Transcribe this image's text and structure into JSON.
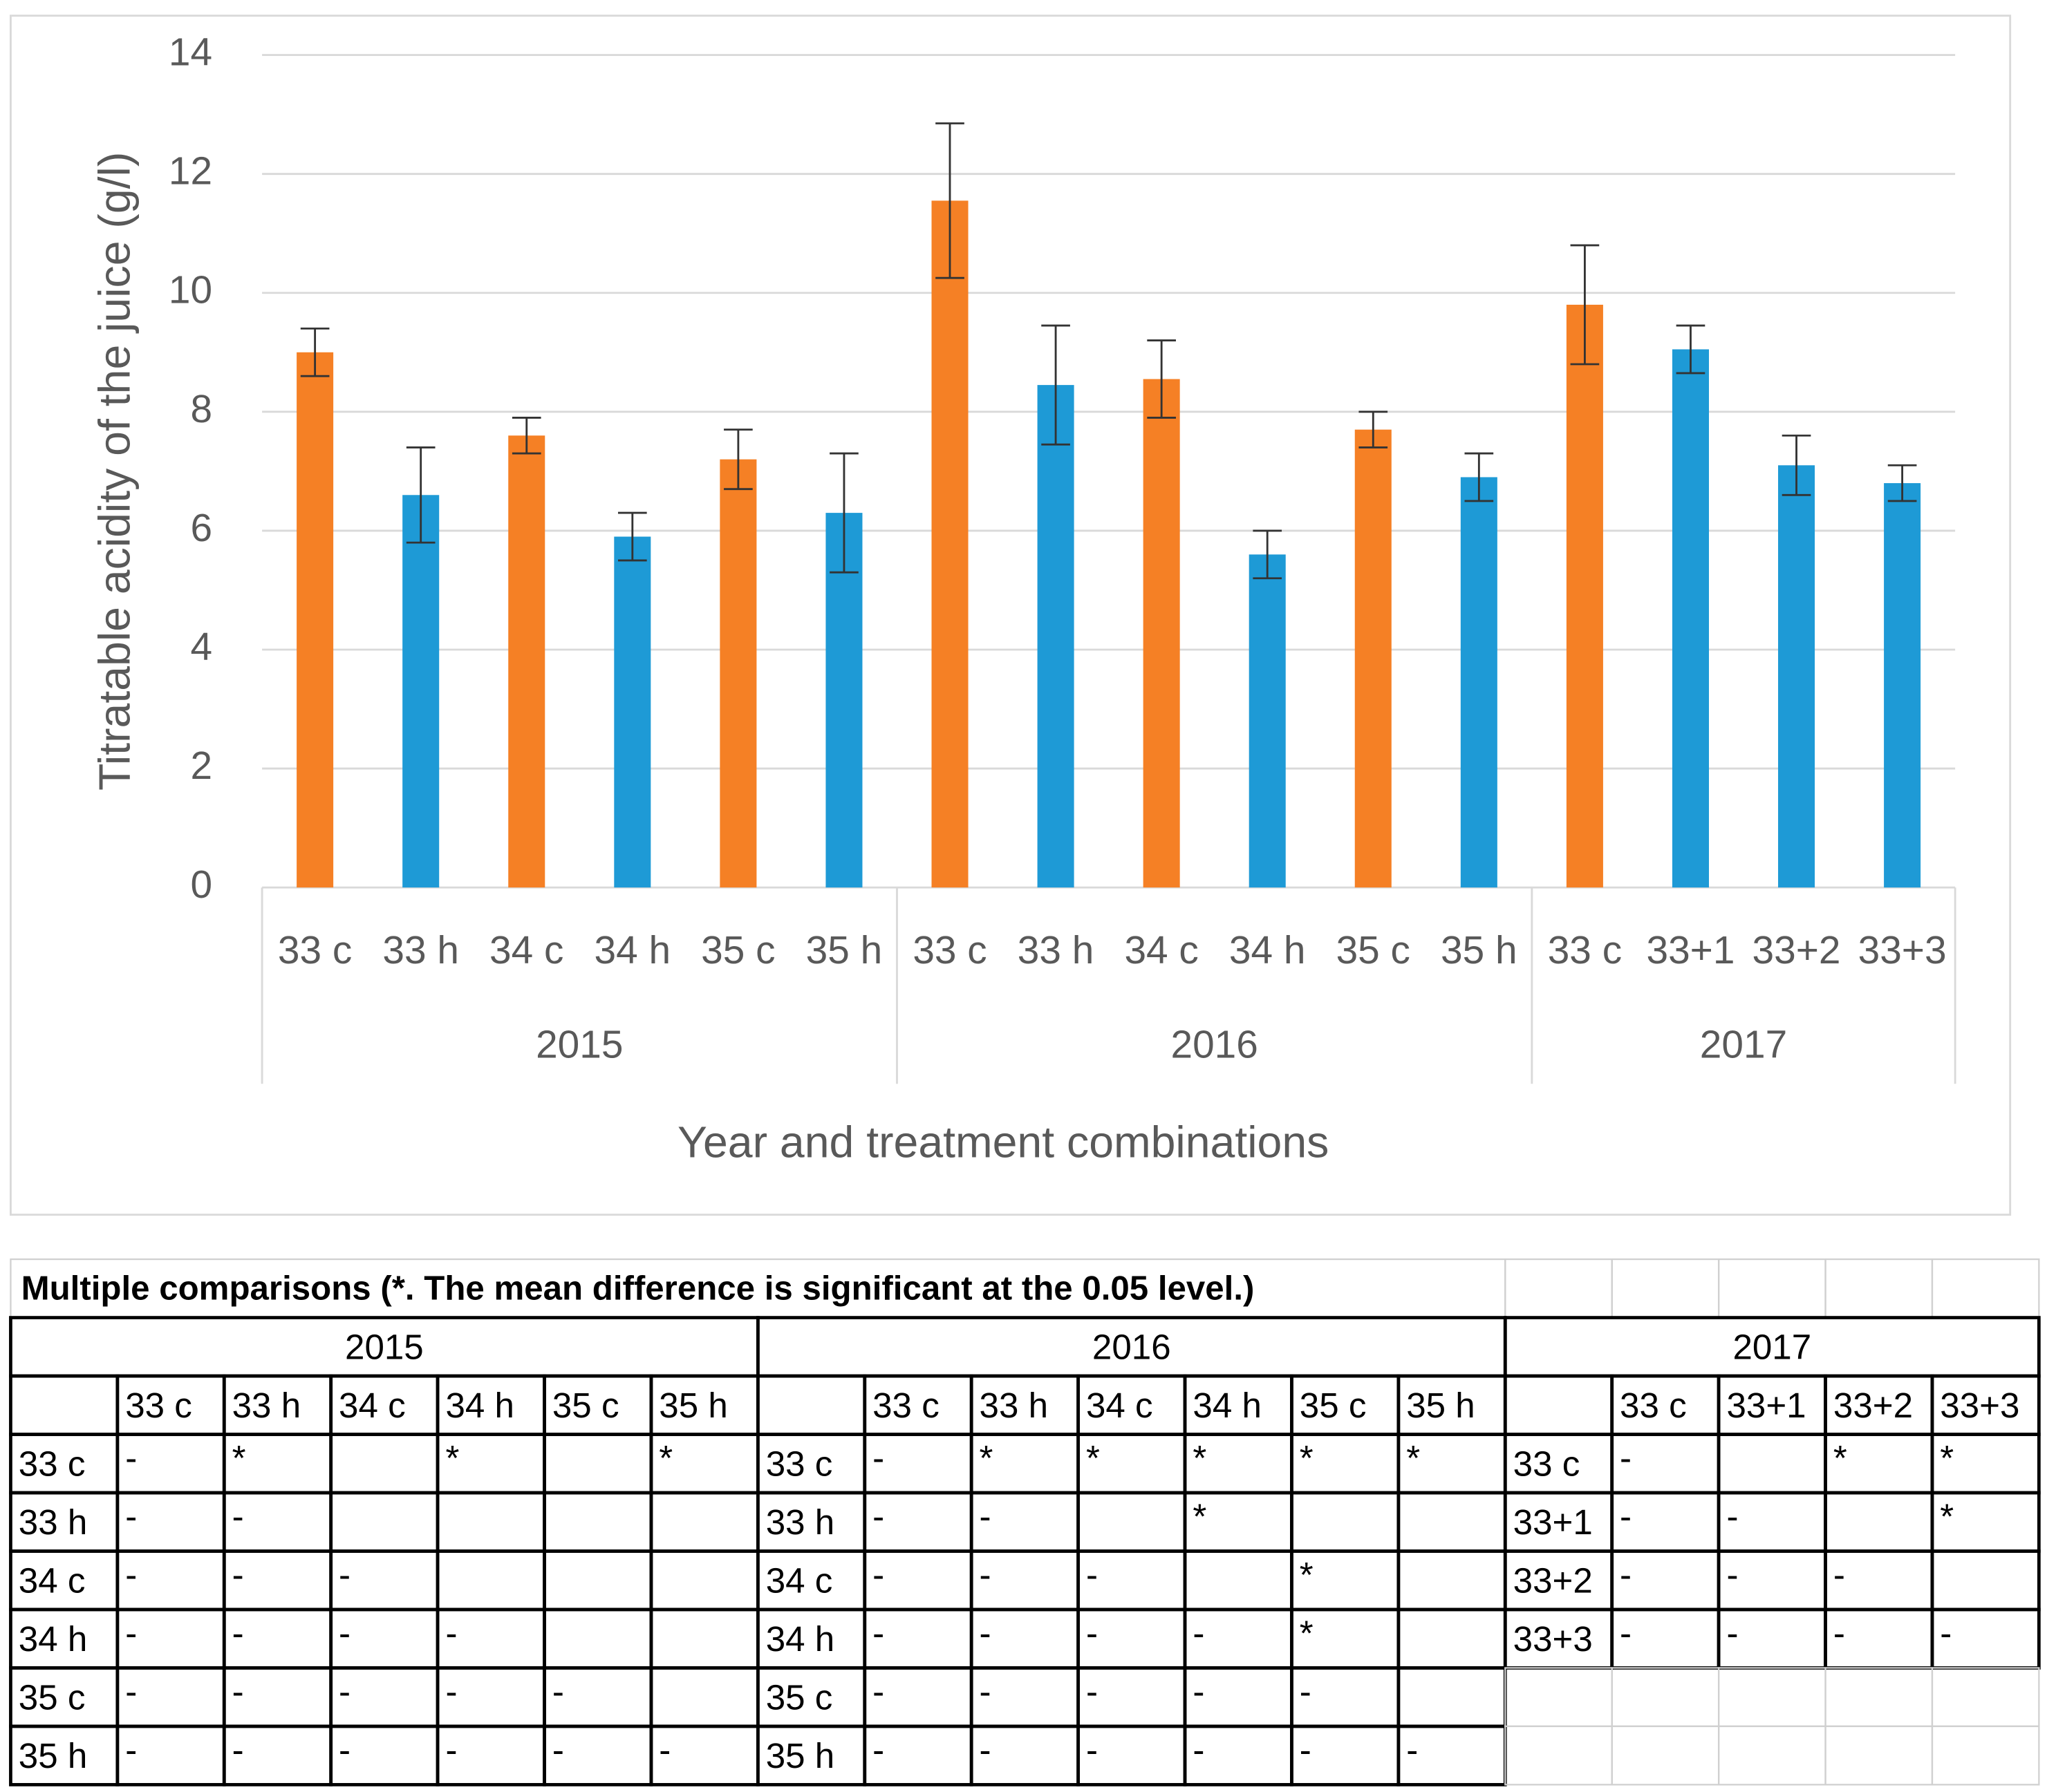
{
  "chart_data": {
    "type": "bar",
    "y_label": "Titratable acidity of the juice (g/l)",
    "x_label": "Year and treatment combinations",
    "ylim": [
      0,
      14
    ],
    "yticks": [
      0,
      2,
      4,
      6,
      8,
      10,
      12,
      14
    ],
    "grid": true,
    "groups": [
      {
        "label": "2015",
        "categories": [
          "33 c",
          "33 h",
          "34 c",
          "34 h",
          "35 c",
          "35 h"
        ],
        "values": [
          9.0,
          6.6,
          7.6,
          5.9,
          7.2,
          6.3
        ],
        "errors": [
          0.4,
          0.8,
          0.3,
          0.4,
          0.5,
          1.0
        ],
        "colors": [
          "#f58025",
          "#1e9ad6",
          "#f58025",
          "#1e9ad6",
          "#f58025",
          "#1e9ad6"
        ]
      },
      {
        "label": "2016",
        "categories": [
          "33 c",
          "33 h",
          "34 c",
          "34 h",
          "35 c",
          "35 h"
        ],
        "values": [
          11.55,
          8.45,
          8.55,
          5.6,
          7.7,
          6.9
        ],
        "errors": [
          1.3,
          1.0,
          0.65,
          0.4,
          0.3,
          0.4
        ],
        "colors": [
          "#f58025",
          "#1e9ad6",
          "#f58025",
          "#1e9ad6",
          "#f58025",
          "#1e9ad6"
        ]
      },
      {
        "label": "2017",
        "categories": [
          "33 c",
          "33+1",
          "33+2",
          "33+3"
        ],
        "values": [
          9.8,
          9.05,
          7.1,
          6.8
        ],
        "errors": [
          1.0,
          0.4,
          0.5,
          0.3
        ],
        "colors": [
          "#f58025",
          "#1e9ad6",
          "#1e9ad6",
          "#1e9ad6"
        ]
      }
    ]
  },
  "table": {
    "title": "Multiple comparisons (*. The mean difference is significant at the 0.05 level.)",
    "blocks": [
      {
        "year": "2015",
        "columns": [
          "33 c",
          "33 h",
          "34 c",
          "34 h",
          "35 c",
          "35 h"
        ],
        "rows": [
          {
            "label": "33 c",
            "cells": [
              "-",
              "*",
              null,
              "*",
              null,
              "*"
            ]
          },
          {
            "label": "33 h",
            "cells": [
              "-",
              "-",
              null,
              null,
              null,
              null
            ]
          },
          {
            "label": "34 c",
            "cells": [
              "-",
              "-",
              "-",
              null,
              null,
              null
            ]
          },
          {
            "label": "34 h",
            "cells": [
              "-",
              "-",
              "-",
              "-",
              null,
              null
            ]
          },
          {
            "label": "35 c",
            "cells": [
              "-",
              "-",
              "-",
              "-",
              "-",
              null
            ]
          },
          {
            "label": "35 h",
            "cells": [
              "-",
              "-",
              "-",
              "-",
              "-",
              "-"
            ]
          }
        ]
      },
      {
        "year": "2016",
        "columns": [
          "33 c",
          "33 h",
          "34 c",
          "34 h",
          "35 c",
          "35 h"
        ],
        "rows": [
          {
            "label": "33 c",
            "cells": [
              "-",
              "*",
              "*",
              "*",
              "*",
              "*"
            ]
          },
          {
            "label": "33 h",
            "cells": [
              "-",
              "-",
              null,
              "*",
              null,
              null
            ]
          },
          {
            "label": "34 c",
            "cells": [
              "-",
              "-",
              "-",
              null,
              "*",
              null
            ]
          },
          {
            "label": "34 h",
            "cells": [
              "-",
              "-",
              "-",
              "-",
              "*",
              null
            ]
          },
          {
            "label": "35 c",
            "cells": [
              "-",
              "-",
              "-",
              "-",
              "-",
              null
            ]
          },
          {
            "label": "35 h",
            "cells": [
              "-",
              "-",
              "-",
              "-",
              "-",
              "-"
            ]
          }
        ]
      },
      {
        "year": "2017",
        "columns": [
          "33 c",
          "33+1",
          "33+2",
          "33+3"
        ],
        "rows": [
          {
            "label": "33 c",
            "cells": [
              "-",
              null,
              "*",
              "*"
            ]
          },
          {
            "label": "33+1",
            "cells": [
              "-",
              "-",
              null,
              "*"
            ]
          },
          {
            "label": "33+2",
            "cells": [
              "-",
              "-",
              "-",
              null
            ]
          },
          {
            "label": "33+3",
            "cells": [
              "-",
              "-",
              "-",
              "-"
            ]
          }
        ]
      }
    ]
  }
}
